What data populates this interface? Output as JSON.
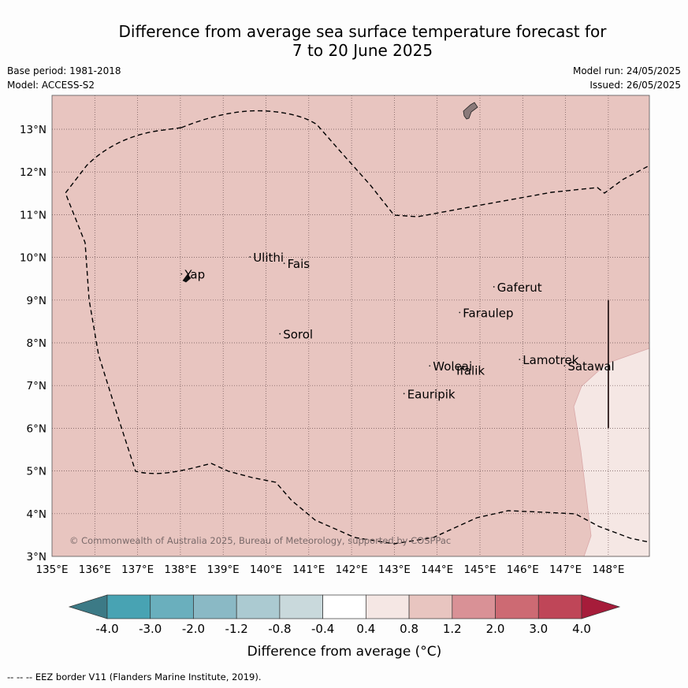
{
  "title": {
    "line1": "Difference from average sea surface temperature forecast for",
    "line2": "7 to 20 June 2025"
  },
  "meta": {
    "base_period": "Base period: 1981-2018",
    "model": "Model: ACCESS-S2",
    "model_run": "Model run: 24/05/2025",
    "issued": "Issued: 26/05/2025"
  },
  "map": {
    "lon_range": [
      135,
      149
    ],
    "lat_range": [
      3,
      13.8
    ],
    "lon_ticks": [
      "135°E",
      "136°E",
      "137°E",
      "138°E",
      "139°E",
      "140°E",
      "141°E",
      "142°E",
      "143°E",
      "144°E",
      "145°E",
      "146°E",
      "147°E",
      "148°E"
    ],
    "lat_ticks": [
      "3°N",
      "4°N",
      "5°N",
      "6°N",
      "7°N",
      "8°N",
      "9°N",
      "10°N",
      "11°N",
      "12°N",
      "13°N"
    ],
    "copyright": "© Commonwealth of Australia 2025, Bureau of Meteorology, supported by COSPPac",
    "places": [
      {
        "name": "Yap",
        "lon": 138.1,
        "lat": 9.5
      },
      {
        "name": "Ulithi",
        "lon": 139.7,
        "lat": 9.9
      },
      {
        "name": "Fais",
        "lon": 140.5,
        "lat": 9.75
      },
      {
        "name": "Sorol",
        "lon": 140.4,
        "lat": 8.1
      },
      {
        "name": "Gaferut",
        "lon": 145.4,
        "lat": 9.2
      },
      {
        "name": "Faraulep",
        "lon": 144.6,
        "lat": 8.6
      },
      {
        "name": "Woleai",
        "lon": 143.9,
        "lat": 7.35
      },
      {
        "name": "Ifalik",
        "lon": 144.45,
        "lat": 7.25
      },
      {
        "name": "Lamotrek",
        "lon": 146.0,
        "lat": 7.5
      },
      {
        "name": "Satawal",
        "lon": 147.05,
        "lat": 7.35
      },
      {
        "name": "Eauripik",
        "lon": 143.3,
        "lat": 6.7
      }
    ],
    "background_anomaly_class": "0.8 to 1.2",
    "east_patch_anomaly_class": "0.4 to 0.8"
  },
  "colorbar": {
    "labels": [
      "-4.0",
      "-3.0",
      "-2.0",
      "-1.2",
      "-0.8",
      "-0.4",
      "0.4",
      "0.8",
      "1.2",
      "2.0",
      "3.0",
      "4.0"
    ],
    "colors": [
      "#3c7a86",
      "#48a3b3",
      "#6aafbd",
      "#8ab9c5",
      "#abcad1",
      "#c9d9dc",
      "#ffffff",
      "#f5e7e4",
      "#e8c5c0",
      "#d99196",
      "#cd6a73",
      "#bf4658",
      "#a61c3a"
    ],
    "label": "Difference from average (°C)"
  },
  "footnote": "--  --  -- EEZ border V11 (Flanders Marine Institute, 2019)."
}
